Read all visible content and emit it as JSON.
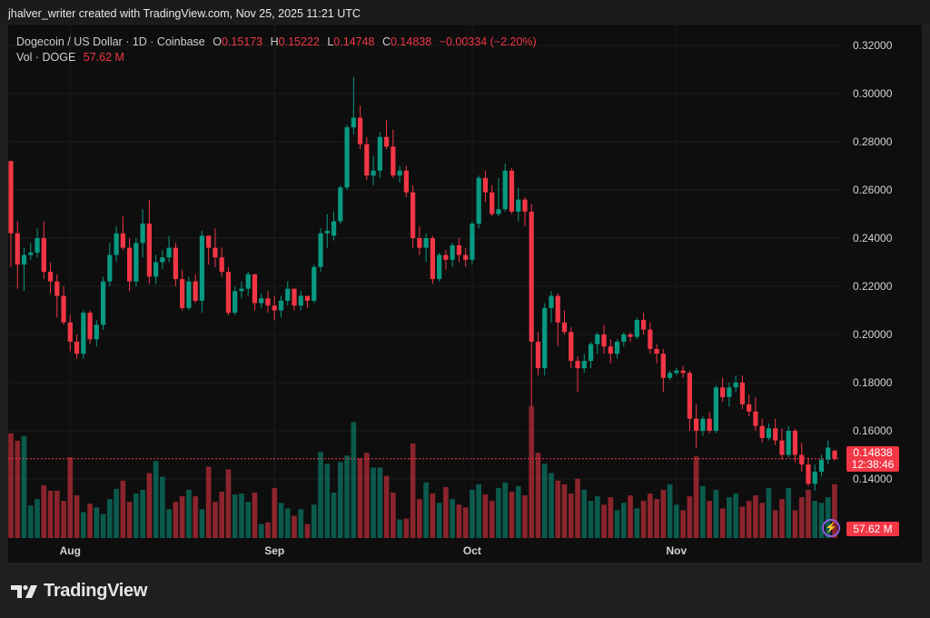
{
  "header": {
    "credit": "jhalver_writer created with TradingView.com, Nov 25, 2025 11:21 UTC"
  },
  "legend": {
    "symbol": "Dogecoin / US Dollar · 1D · Coinbase",
    "o_label": "O",
    "o": "0.15173",
    "h_label": "H",
    "h": "0.15222",
    "l_label": "L",
    "l": "0.14748",
    "c_label": "C",
    "c": "0.14838",
    "change": "−0.00334 (−2.20%)",
    "vol_label": "Vol · DOGE",
    "vol": "57.62 M"
  },
  "last_price_tag": {
    "price": "0.14838",
    "countdown": "12:38:46"
  },
  "volume_tag": "57.62 M",
  "brand": {
    "name": "TradingView"
  },
  "colors": {
    "up": "#089981",
    "down": "#f23645",
    "background": "#0e0e0e",
    "grid": "#1c1c1c",
    "axis_text": "#d1d4dc"
  },
  "chart_data": {
    "type": "candlestick",
    "ylim": [
      0.13,
      0.325
    ],
    "y_ticks": [
      "0.32000",
      "0.30000",
      "0.28000",
      "0.26000",
      "0.24000",
      "0.22000",
      "0.20000",
      "0.18000",
      "0.16000",
      "0.14000"
    ],
    "x_ticks": [
      "Aug",
      "Sep",
      "Oct",
      "Nov"
    ],
    "grid": true,
    "ohlc": [
      [
        0.272,
        0.272,
        0.228,
        0.242
      ],
      [
        0.242,
        0.247,
        0.219,
        0.229
      ],
      [
        0.229,
        0.236,
        0.218,
        0.233
      ],
      [
        0.233,
        0.238,
        0.231,
        0.234
      ],
      [
        0.234,
        0.244,
        0.232,
        0.24
      ],
      [
        0.24,
        0.247,
        0.223,
        0.226
      ],
      [
        0.226,
        0.23,
        0.217,
        0.222
      ],
      [
        0.222,
        0.225,
        0.207,
        0.216
      ],
      [
        0.216,
        0.22,
        0.204,
        0.205
      ],
      [
        0.205,
        0.208,
        0.193,
        0.197
      ],
      [
        0.197,
        0.2,
        0.19,
        0.192
      ],
      [
        0.192,
        0.21,
        0.19,
        0.209
      ],
      [
        0.209,
        0.21,
        0.196,
        0.198
      ],
      [
        0.198,
        0.206,
        0.195,
        0.204
      ],
      [
        0.204,
        0.224,
        0.202,
        0.222
      ],
      [
        0.222,
        0.238,
        0.22,
        0.233
      ],
      [
        0.233,
        0.245,
        0.23,
        0.242
      ],
      [
        0.242,
        0.249,
        0.235,
        0.236
      ],
      [
        0.236,
        0.24,
        0.218,
        0.222
      ],
      [
        0.222,
        0.24,
        0.22,
        0.238
      ],
      [
        0.238,
        0.252,
        0.232,
        0.246
      ],
      [
        0.246,
        0.256,
        0.221,
        0.224
      ],
      [
        0.224,
        0.233,
        0.221,
        0.23
      ],
      [
        0.23,
        0.235,
        0.227,
        0.232
      ],
      [
        0.232,
        0.241,
        0.23,
        0.236
      ],
      [
        0.236,
        0.238,
        0.22,
        0.223
      ],
      [
        0.223,
        0.227,
        0.21,
        0.211
      ],
      [
        0.211,
        0.224,
        0.21,
        0.222
      ],
      [
        0.222,
        0.225,
        0.213,
        0.214
      ],
      [
        0.214,
        0.243,
        0.209,
        0.241
      ],
      [
        0.241,
        0.241,
        0.229,
        0.236
      ],
      [
        0.236,
        0.244,
        0.228,
        0.232
      ],
      [
        0.232,
        0.236,
        0.224,
        0.226
      ],
      [
        0.226,
        0.228,
        0.208,
        0.209
      ],
      [
        0.209,
        0.22,
        0.208,
        0.218
      ],
      [
        0.218,
        0.222,
        0.215,
        0.219
      ],
      [
        0.219,
        0.226,
        0.216,
        0.225
      ],
      [
        0.225,
        0.225,
        0.21,
        0.213
      ],
      [
        0.213,
        0.217,
        0.211,
        0.215
      ],
      [
        0.215,
        0.218,
        0.209,
        0.212
      ],
      [
        0.212,
        0.216,
        0.206,
        0.21
      ],
      [
        0.21,
        0.216,
        0.207,
        0.214
      ],
      [
        0.214,
        0.222,
        0.212,
        0.219
      ],
      [
        0.219,
        0.219,
        0.21,
        0.212
      ],
      [
        0.212,
        0.218,
        0.21,
        0.216
      ],
      [
        0.216,
        0.216,
        0.211,
        0.214
      ],
      [
        0.214,
        0.229,
        0.213,
        0.228
      ],
      [
        0.228,
        0.244,
        0.226,
        0.242
      ],
      [
        0.242,
        0.25,
        0.236,
        0.243
      ],
      [
        0.241,
        0.251,
        0.239,
        0.247
      ],
      [
        0.247,
        0.262,
        0.246,
        0.261
      ],
      [
        0.261,
        0.287,
        0.26,
        0.286
      ],
      [
        0.286,
        0.307,
        0.283,
        0.29
      ],
      [
        0.29,
        0.295,
        0.277,
        0.279
      ],
      [
        0.279,
        0.282,
        0.264,
        0.266
      ],
      [
        0.266,
        0.274,
        0.262,
        0.268
      ],
      [
        0.268,
        0.284,
        0.265,
        0.282
      ],
      [
        0.282,
        0.289,
        0.277,
        0.278
      ],
      [
        0.278,
        0.285,
        0.265,
        0.266
      ],
      [
        0.266,
        0.27,
        0.263,
        0.268
      ],
      [
        0.268,
        0.27,
        0.257,
        0.259
      ],
      [
        0.259,
        0.262,
        0.236,
        0.24
      ],
      [
        0.24,
        0.245,
        0.233,
        0.236
      ],
      [
        0.236,
        0.242,
        0.23,
        0.24
      ],
      [
        0.24,
        0.241,
        0.221,
        0.223
      ],
      [
        0.223,
        0.234,
        0.222,
        0.233
      ],
      [
        0.233,
        0.235,
        0.227,
        0.231
      ],
      [
        0.231,
        0.238,
        0.228,
        0.237
      ],
      [
        0.237,
        0.24,
        0.23,
        0.233
      ],
      [
        0.233,
        0.236,
        0.228,
        0.231
      ],
      [
        0.231,
        0.247,
        0.229,
        0.246
      ],
      [
        0.246,
        0.266,
        0.244,
        0.265
      ],
      [
        0.265,
        0.268,
        0.255,
        0.259
      ],
      [
        0.259,
        0.262,
        0.249,
        0.25
      ],
      [
        0.25,
        0.265,
        0.249,
        0.252
      ],
      [
        0.252,
        0.271,
        0.251,
        0.268
      ],
      [
        0.268,
        0.269,
        0.25,
        0.251
      ],
      [
        0.251,
        0.261,
        0.247,
        0.256
      ],
      [
        0.256,
        0.257,
        0.245,
        0.251
      ],
      [
        0.251,
        0.254,
        0.17,
        0.197
      ],
      [
        0.197,
        0.201,
        0.183,
        0.186
      ],
      [
        0.186,
        0.213,
        0.183,
        0.211
      ],
      [
        0.211,
        0.218,
        0.205,
        0.216
      ],
      [
        0.216,
        0.217,
        0.195,
        0.205
      ],
      [
        0.205,
        0.21,
        0.2,
        0.201
      ],
      [
        0.201,
        0.203,
        0.186,
        0.189
      ],
      [
        0.189,
        0.191,
        0.176,
        0.186
      ],
      [
        0.186,
        0.192,
        0.184,
        0.189
      ],
      [
        0.189,
        0.197,
        0.186,
        0.196
      ],
      [
        0.196,
        0.201,
        0.192,
        0.2
      ],
      [
        0.2,
        0.204,
        0.192,
        0.195
      ],
      [
        0.195,
        0.198,
        0.188,
        0.192
      ],
      [
        0.192,
        0.198,
        0.19,
        0.197
      ],
      [
        0.197,
        0.201,
        0.195,
        0.2
      ],
      [
        0.2,
        0.201,
        0.197,
        0.199
      ],
      [
        0.199,
        0.207,
        0.198,
        0.206
      ],
      [
        0.206,
        0.209,
        0.2,
        0.202
      ],
      [
        0.202,
        0.205,
        0.192,
        0.194
      ],
      [
        0.194,
        0.196,
        0.188,
        0.192
      ],
      [
        0.192,
        0.194,
        0.176,
        0.182
      ],
      [
        0.182,
        0.185,
        0.181,
        0.184
      ],
      [
        0.184,
        0.186,
        0.183,
        0.185
      ],
      [
        0.185,
        0.187,
        0.182,
        0.184
      ],
      [
        0.184,
        0.185,
        0.16,
        0.165
      ],
      [
        0.165,
        0.171,
        0.153,
        0.16
      ],
      [
        0.16,
        0.166,
        0.158,
        0.165
      ],
      [
        0.165,
        0.168,
        0.159,
        0.16
      ],
      [
        0.16,
        0.179,
        0.159,
        0.178
      ],
      [
        0.178,
        0.182,
        0.172,
        0.174
      ],
      [
        0.174,
        0.18,
        0.17,
        0.178
      ],
      [
        0.178,
        0.183,
        0.176,
        0.18
      ],
      [
        0.18,
        0.183,
        0.169,
        0.171
      ],
      [
        0.171,
        0.175,
        0.166,
        0.168
      ],
      [
        0.168,
        0.174,
        0.16,
        0.162
      ],
      [
        0.162,
        0.165,
        0.155,
        0.157
      ],
      [
        0.157,
        0.163,
        0.156,
        0.161
      ],
      [
        0.161,
        0.165,
        0.154,
        0.156
      ],
      [
        0.156,
        0.161,
        0.148,
        0.15
      ],
      [
        0.15,
        0.162,
        0.149,
        0.16
      ],
      [
        0.16,
        0.161,
        0.147,
        0.15
      ],
      [
        0.15,
        0.155,
        0.143,
        0.146
      ],
      [
        0.146,
        0.149,
        0.137,
        0.138
      ],
      [
        0.138,
        0.146,
        0.135,
        0.143
      ],
      [
        0.143,
        0.15,
        0.141,
        0.148
      ],
      [
        0.148,
        0.156,
        0.146,
        0.153
      ],
      [
        0.15173,
        0.15222,
        0.14748,
        0.14838
      ]
    ],
    "volume_millions": [
      113,
      105,
      110,
      35,
      42,
      57,
      51,
      51,
      40,
      87,
      46,
      28,
      37,
      33,
      26,
      42,
      53,
      62,
      39,
      48,
      52,
      70,
      83,
      66,
      31,
      39,
      45,
      52,
      45,
      31,
      77,
      39,
      50,
      74,
      47,
      48,
      39,
      49,
      15,
      17,
      54,
      38,
      32,
      24,
      31,
      15,
      36,
      93,
      80,
      49,
      82,
      89,
      125,
      86,
      92,
      76,
      76,
      67,
      49,
      20,
      21,
      102,
      42,
      60,
      48,
      38,
      55,
      42,
      36,
      33,
      52,
      58,
      47,
      40,
      54,
      60,
      50,
      56,
      46,
      142,
      92,
      80,
      70,
      62,
      58,
      48,
      64,
      52,
      40,
      45,
      36,
      44,
      30,
      38,
      46,
      32,
      40,
      48,
      42,
      52,
      58,
      36,
      30,
      45,
      88,
      56,
      40,
      52,
      32,
      44,
      48,
      34,
      40,
      46,
      38,
      54,
      30,
      42,
      54,
      30,
      44,
      52,
      40,
      38,
      44,
      58
    ]
  }
}
